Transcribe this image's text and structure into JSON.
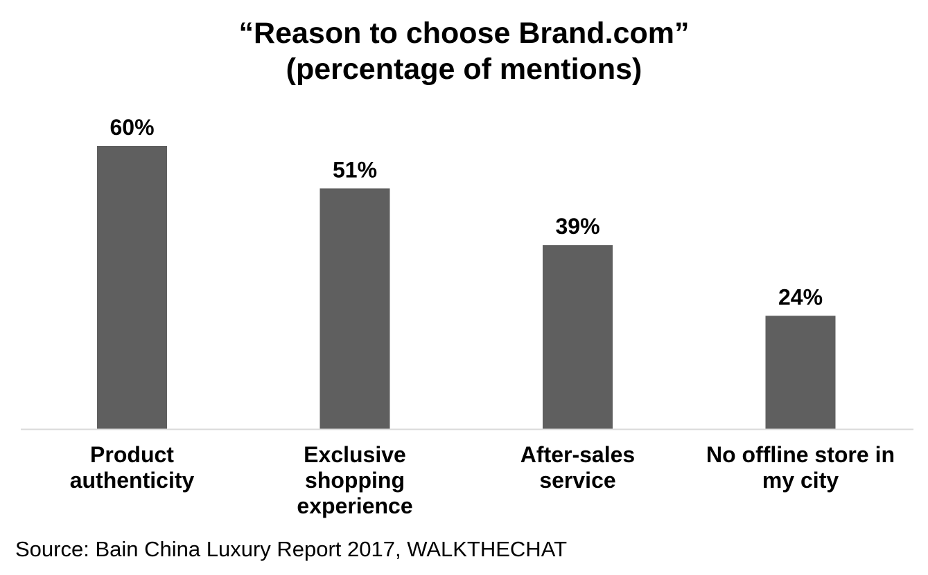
{
  "chart_data": {
    "type": "bar",
    "title": [
      "“Reason to choose Brand.com”",
      "(percentage of mentions)"
    ],
    "categories": [
      [
        "Product",
        "authenticity"
      ],
      [
        "Exclusive",
        "shopping",
        "experience"
      ],
      [
        "After-sales",
        "service"
      ],
      [
        "No offline store in",
        "my city"
      ]
    ],
    "values": [
      60,
      51,
      39,
      24
    ],
    "value_labels": [
      "60%",
      "51%",
      "39%",
      "24%"
    ],
    "unit": "%",
    "ylim": [
      0,
      60
    ],
    "bar_color": "#5f5f5f",
    "axis_color": "#d9d9d9",
    "grid": false,
    "legend": "none"
  },
  "source": "Source: Bain China Luxury Report 2017, WALKTHECHAT"
}
